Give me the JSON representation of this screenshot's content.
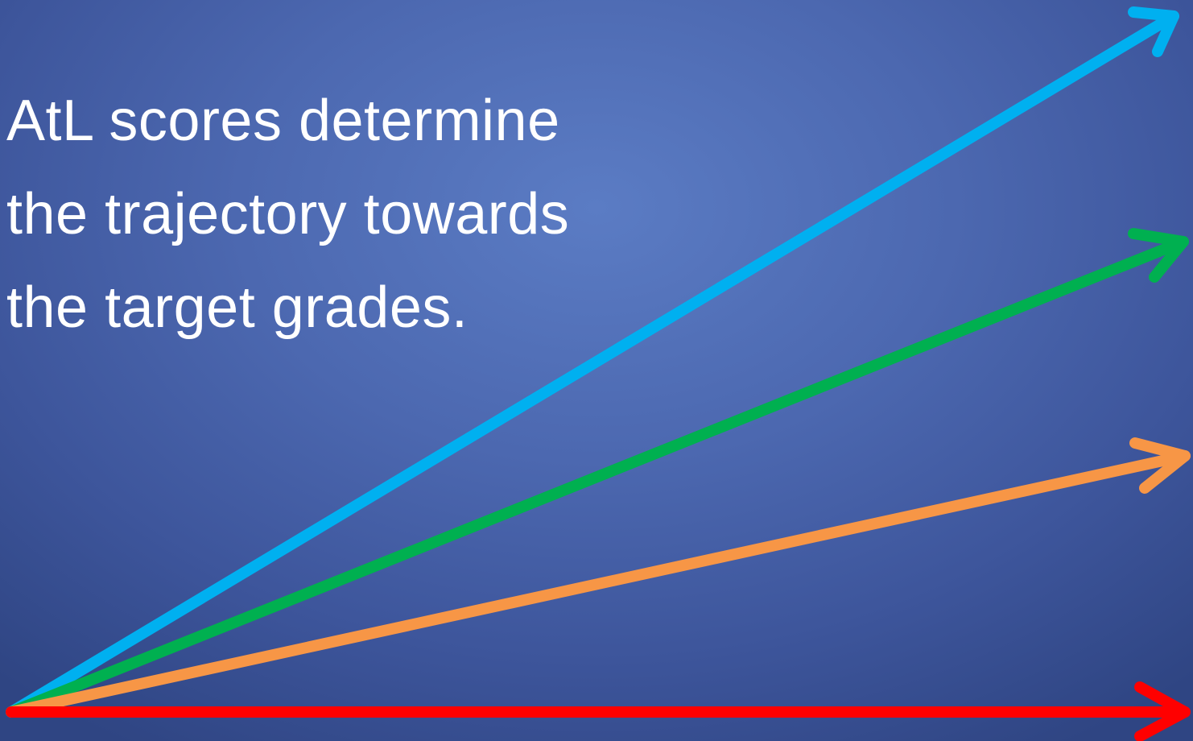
{
  "slide": {
    "text_lines": [
      "AtL scores determine",
      "the trajectory towards",
      "the target grades."
    ]
  },
  "arrows": [
    {
      "name": "blue-arrow",
      "color": "#00b0f0"
    },
    {
      "name": "green-arrow",
      "color": "#00b050"
    },
    {
      "name": "orange-arrow",
      "color": "#f79646"
    },
    {
      "name": "red-arrow",
      "color": "#ff0000"
    }
  ]
}
